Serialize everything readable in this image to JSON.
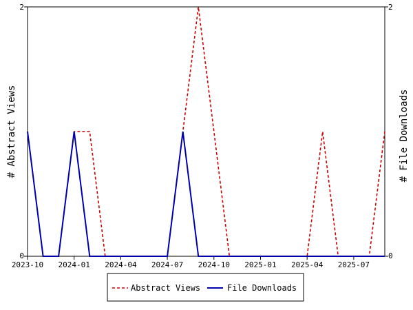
{
  "chart_data": {
    "type": "line",
    "title": "",
    "x": [
      "2023-10",
      "2023-11",
      "2023-12",
      "2024-01",
      "2024-02",
      "2024-03",
      "2024-04",
      "2024-05",
      "2024-06",
      "2024-07",
      "2024-08",
      "2024-09",
      "2024-10",
      "2024-11",
      "2024-12",
      "2025-01",
      "2025-02",
      "2025-03",
      "2025-04",
      "2025-05",
      "2025-06",
      "2025-07",
      "2025-08",
      "2025-09"
    ],
    "x_ticks": [
      "2023-10",
      "2024-01",
      "2024-04",
      "2024-07",
      "2024-10",
      "2025-01",
      "2025-04",
      "2025-07"
    ],
    "ylabel_left": "# Abstract Views",
    "ylabel_right": "# File Downloads",
    "ylim_left": [
      0,
      2
    ],
    "ylim_right": [
      0,
      2
    ],
    "y_ticks_left": [
      "0",
      "2"
    ],
    "y_ticks_right": [
      "0",
      "2"
    ],
    "legend_position": "bottom",
    "series": [
      {
        "name": "Abstract Views",
        "axis": "left",
        "color": "#cc0000",
        "style": "dashed",
        "values": [
          1,
          0,
          0,
          1,
          1,
          0,
          0,
          0,
          0,
          0,
          1,
          2,
          1,
          0,
          0,
          0,
          0,
          0,
          0,
          1,
          0,
          0,
          0,
          1
        ]
      },
      {
        "name": "File Downloads",
        "axis": "right",
        "color": "#0000aa",
        "style": "solid",
        "values": [
          1,
          0,
          0,
          1,
          0,
          0,
          0,
          0,
          0,
          0,
          1,
          0,
          0,
          0,
          0,
          0,
          0,
          0,
          0,
          0,
          0,
          0,
          0,
          0
        ]
      }
    ]
  }
}
